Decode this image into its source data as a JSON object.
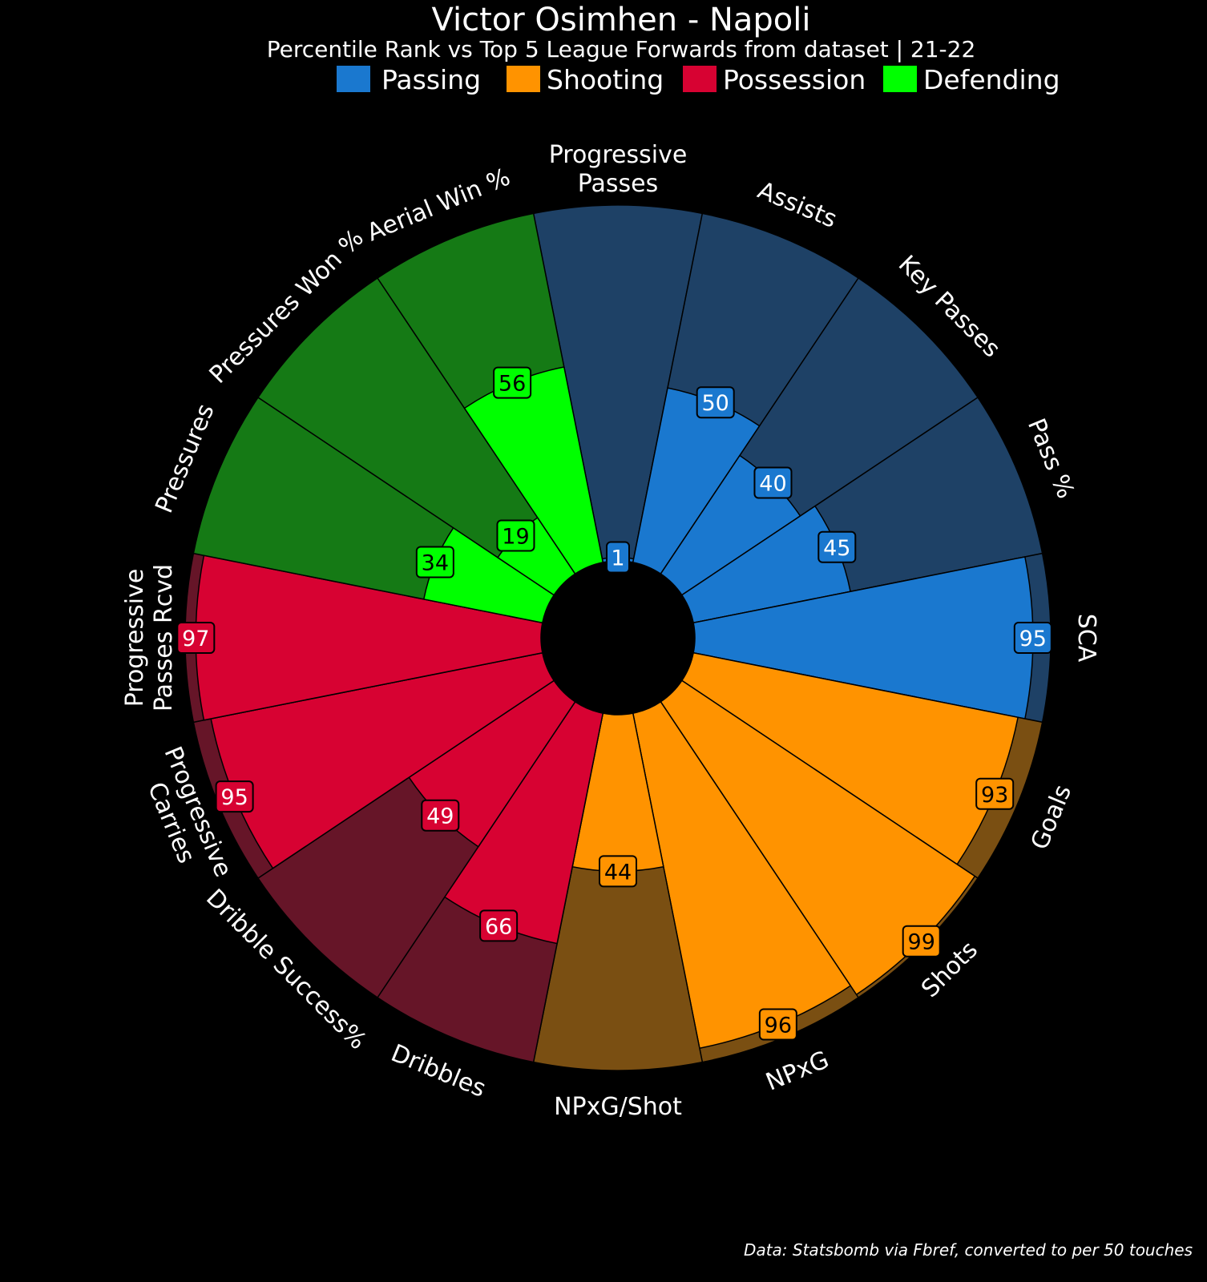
{
  "chart_data": {
    "type": "polar-bar",
    "title": "Victor Osimhen - Napoli",
    "subtitle": "Percentile Rank vs Top 5 League Forwards from dataset | 21-22",
    "legend": [
      {
        "name": "Passing",
        "color": "#1a78cf"
      },
      {
        "name": "Shooting",
        "color": "#ff9300"
      },
      {
        "name": "Possession",
        "color": "#d70232"
      },
      {
        "name": "Defending",
        "color": "#00ff00"
      }
    ],
    "bg_colors": {
      "Passing": "#1e4166",
      "Shooting": "#7a4f12",
      "Possession": "#661528",
      "Defending": "#157a15"
    },
    "categories": [
      {
        "label": "Progressive\nPasses",
        "value": 1,
        "group": "Passing"
      },
      {
        "label": "Assists",
        "value": 50,
        "group": "Passing"
      },
      {
        "label": "Key Passes",
        "value": 40,
        "group": "Passing"
      },
      {
        "label": "Pass %",
        "value": 45,
        "group": "Passing"
      },
      {
        "label": "SCA",
        "value": 95,
        "group": "Passing"
      },
      {
        "label": "Goals",
        "value": 93,
        "group": "Shooting"
      },
      {
        "label": "Shots",
        "value": 99,
        "group": "Shooting"
      },
      {
        "label": "NPxG",
        "value": 96,
        "group": "Shooting"
      },
      {
        "label": "NPxG/Shot",
        "value": 44,
        "group": "Shooting"
      },
      {
        "label": "Dribbles",
        "value": 66,
        "group": "Possession"
      },
      {
        "label": "Dribble Success%",
        "value": 49,
        "group": "Possession"
      },
      {
        "label": "Progressive\nCarries",
        "value": 95,
        "group": "Possession"
      },
      {
        "label": "Progressive\nPasses Rcvd",
        "value": 97,
        "group": "Possession"
      },
      {
        "label": "Pressures",
        "value": 34,
        "group": "Defending"
      },
      {
        "label": "Pressures Won %",
        "value": 19,
        "group": "Defending"
      },
      {
        "label": "Aerial Win %",
        "value": 56,
        "group": "Defending"
      }
    ],
    "rlim": [
      0,
      100
    ]
  },
  "footer": "Data: Statsbomb via Fbref, converted to per 50 touches"
}
